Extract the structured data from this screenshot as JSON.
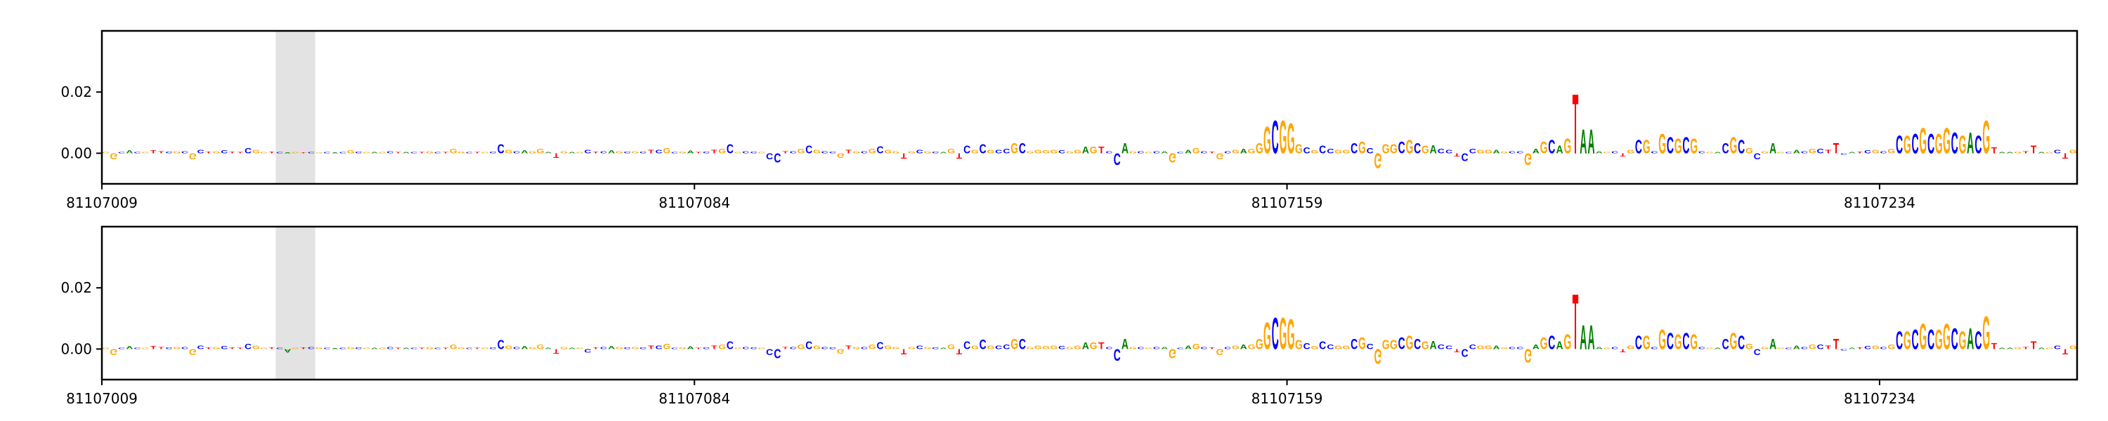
{
  "chart_data": [
    {
      "type": "logo",
      "xlim": [
        81107009,
        81107259
      ],
      "xticks": [
        81107009,
        81107084,
        81107159,
        81107234
      ],
      "ylim": [
        -0.01,
        0.04
      ],
      "yticks": [
        {
          "value": 0,
          "label": "0.00"
        },
        0.02
      ],
      "highlight": [
        81107031,
        81107036
      ],
      "highlight_color": "#e3e3e3",
      "colors": {
        "A": "#008000",
        "C": "#0000ff",
        "G": "#ffa500",
        "T": "#ff0000"
      },
      "bases": [
        "G",
        "G",
        "C",
        "A",
        "C",
        "G",
        "T",
        "T",
        "C",
        "G",
        "C",
        "G",
        "C",
        "T",
        "G",
        "C",
        "T",
        "T",
        "C",
        "G",
        "G",
        "T",
        "C",
        "A",
        "G",
        "T",
        "C",
        "G",
        "C",
        "A",
        "C",
        "G",
        "C",
        "G",
        "A",
        "G",
        "C",
        "T",
        "A",
        "C",
        "T",
        "G",
        "C",
        "T",
        "G",
        "G",
        "C",
        "T",
        "G",
        "C",
        "C",
        "G",
        "C",
        "A",
        "G",
        "G",
        "A",
        "T",
        "G",
        "A",
        "G",
        "C",
        "T",
        "C",
        "A",
        "G",
        "C",
        "G",
        "C",
        "T",
        "C",
        "G",
        "C",
        "G",
        "A",
        "T",
        "C",
        "T",
        "G",
        "C",
        "G",
        "C",
        "C",
        "G",
        "C",
        "C",
        "T",
        "C",
        "G",
        "C",
        "G",
        "C",
        "C",
        "G",
        "T",
        "G",
        "C",
        "G",
        "C",
        "G",
        "G",
        "T",
        "G",
        "C",
        "G",
        "C",
        "A",
        "G",
        "T",
        "C",
        "G",
        "C",
        "G",
        "C",
        "C",
        "G",
        "C",
        "G",
        "G",
        "G",
        "G",
        "C",
        "G",
        "G",
        "A",
        "G",
        "T",
        "C",
        "C",
        "A",
        "G",
        "C",
        "G",
        "C",
        "A",
        "G",
        "C",
        "A",
        "G",
        "C",
        "T",
        "G",
        "C",
        "G",
        "A",
        "G",
        "G",
        "G",
        "C",
        "G",
        "G",
        "G",
        "C",
        "G",
        "C",
        "C",
        "G",
        "G",
        "C",
        "G",
        "C",
        "G",
        "G",
        "G",
        "C",
        "G",
        "C",
        "G",
        "A",
        "C",
        "C",
        "T",
        "C",
        "C",
        "G",
        "G",
        "A",
        "G",
        "C",
        "C",
        "G",
        "A",
        "G",
        "C",
        "A",
        "G",
        "T",
        "A",
        "A",
        "A",
        "G",
        "C",
        "T",
        "G",
        "C",
        "G",
        "C",
        "G",
        "C",
        "G",
        "C",
        "G",
        "C",
        "G",
        "A",
        "C",
        "G",
        "C",
        "G",
        "C",
        "G",
        "A",
        "G",
        "C",
        "A",
        "C",
        "G",
        "C",
        "T",
        "T",
        "C",
        "A",
        "T",
        "C",
        "G",
        "C",
        "G",
        "C",
        "G",
        "C",
        "G",
        "C",
        "G",
        "G",
        "C",
        "G",
        "A",
        "C",
        "G",
        "T",
        "A",
        "A",
        "G",
        "T",
        "T",
        "A",
        "G",
        "C",
        "T",
        "G"
      ],
      "values": [
        0.0005,
        -0.002,
        0.0005,
        0.001,
        0.0005,
        0.0005,
        0.001,
        0.0008,
        0.0006,
        0.0008,
        0.0008,
        -0.002,
        0.0012,
        0.0006,
        0.0008,
        0.001,
        0.0006,
        0.0005,
        0.0018,
        0.0012,
        0.0005,
        0.0006,
        0.0005,
        0.0003,
        0.0004,
        0.0003,
        0.0004,
        0.0003,
        0.0004,
        0.0003,
        0.0004,
        0.001,
        0.0006,
        0.0005,
        0.0005,
        0.0004,
        0.0008,
        0.0004,
        0.0005,
        0.0004,
        0.0005,
        0.0007,
        0.0004,
        0.0005,
        0.0015,
        0.0006,
        0.0005,
        0.0005,
        0.0005,
        0.0006,
        0.003,
        0.0012,
        0.0008,
        0.001,
        0.0007,
        0.0015,
        0.0005,
        -0.0015,
        0.0008,
        0.0004,
        0.0004,
        0.0012,
        0.0006,
        0.0008,
        0.001,
        0.0007,
        0.0006,
        0.0008,
        0.0006,
        0.0012,
        0.0012,
        0.0018,
        0.0004,
        0.0006,
        0.0009,
        0.0005,
        0.0006,
        0.0012,
        0.0015,
        0.003,
        0.0005,
        0.0008,
        0.0006,
        0.0004,
        -0.002,
        -0.003,
        0.0008,
        0.0008,
        0.0015,
        0.0025,
        0.0012,
        0.0008,
        0.0006,
        -0.0015,
        0.0012,
        0.0008,
        0.0008,
        0.0015,
        0.0024,
        0.0012,
        0.0008,
        -0.0018,
        0.0008,
        0.0012,
        0.0008,
        0.0006,
        0.0004,
        0.0015,
        -0.0018,
        0.0025,
        0.0012,
        0.003,
        0.0012,
        0.0012,
        0.0015,
        0.0035,
        0.0035,
        0.0008,
        0.0012,
        0.001,
        0.0012,
        0.001,
        0.0008,
        0.0012,
        0.0022,
        0.0022,
        0.0022,
        0.0008,
        -0.004,
        0.0035,
        0.0008,
        0.0008,
        0.0004,
        0.0008,
        0.0008,
        -0.003,
        0.0004,
        0.0012,
        0.0018,
        0.0008,
        0.0006,
        -0.002,
        0.0008,
        0.0012,
        0.0015,
        0.0015,
        0.0035,
        0.009,
        0.011,
        0.011,
        0.01,
        0.003,
        0.002,
        0.001,
        0.0025,
        0.0015,
        0.0012,
        0.0012,
        0.0035,
        0.004,
        0.0018,
        -0.005,
        0.003,
        0.003,
        0.004,
        0.0045,
        0.0035,
        0.0025,
        0.0028,
        0.0015,
        0.0012,
        -0.001,
        -0.0025,
        0.0015,
        0.0012,
        0.0012,
        0.0012,
        0.0006,
        0.0008,
        0.0008,
        -0.004,
        0.0015,
        0.004,
        0.0045,
        0.0025,
        0.005,
        0.02,
        0.008,
        0.008,
        0.0008,
        0.0005,
        0.0008,
        -0.001,
        0.0012,
        0.0045,
        0.0045,
        0.0008,
        0.0065,
        0.0055,
        0.005,
        0.0055,
        0.005,
        0.0008,
        0.0004,
        0.0004,
        0.0035,
        0.0055,
        0.0045,
        0.0018,
        -0.002,
        0.0008,
        0.0035,
        0.0004,
        0.0005,
        0.0012,
        0.0008,
        0.0015,
        0.0015,
        0.0012,
        0.0035,
        -0.0005,
        0.0005,
        0.0006,
        0.001,
        0.0012,
        0.0008,
        0.0015,
        0.006,
        0.006,
        0.0065,
        0.0085,
        0.0065,
        0.0065,
        0.0085,
        0.007,
        0.006,
        0.007,
        0.006,
        0.011,
        0.002,
        0.0004,
        0.0004,
        0.0006,
        0.0008,
        0.0025,
        0.0004,
        0.0004,
        0.0012,
        -0.0018,
        0.0012
      ]
    },
    {
      "type": "logo",
      "xlim": [
        81107009,
        81107259
      ],
      "xticks": [
        81107009,
        81107084,
        81107159,
        81107234
      ],
      "ylim": [
        -0.01,
        0.04
      ],
      "yticks": [
        {
          "value": 0,
          "label": "0.00"
        },
        0.02
      ],
      "highlight": [
        81107031,
        81107036
      ],
      "highlight_color": "#e3e3e3",
      "colors": {
        "A": "#008000",
        "C": "#0000ff",
        "G": "#ffa500",
        "T": "#ff0000"
      },
      "bases": [
        "G",
        "G",
        "C",
        "A",
        "C",
        "G",
        "T",
        "T",
        "C",
        "G",
        "C",
        "G",
        "C",
        "T",
        "G",
        "C",
        "T",
        "T",
        "C",
        "G",
        "G",
        "T",
        "C",
        "A",
        "G",
        "T",
        "C",
        "G",
        "C",
        "A",
        "C",
        "G",
        "C",
        "G",
        "A",
        "G",
        "C",
        "T",
        "A",
        "C",
        "T",
        "G",
        "C",
        "T",
        "G",
        "G",
        "C",
        "T",
        "G",
        "C",
        "C",
        "G",
        "C",
        "A",
        "G",
        "G",
        "A",
        "T",
        "G",
        "A",
        "G",
        "C",
        "T",
        "C",
        "A",
        "G",
        "C",
        "G",
        "C",
        "T",
        "C",
        "G",
        "C",
        "G",
        "A",
        "T",
        "C",
        "T",
        "G",
        "C",
        "G",
        "C",
        "C",
        "G",
        "C",
        "C",
        "T",
        "C",
        "G",
        "C",
        "G",
        "C",
        "C",
        "G",
        "T",
        "G",
        "C",
        "G",
        "C",
        "G",
        "G",
        "T",
        "G",
        "C",
        "G",
        "C",
        "A",
        "G",
        "T",
        "C",
        "G",
        "C",
        "G",
        "C",
        "C",
        "G",
        "C",
        "G",
        "G",
        "G",
        "G",
        "C",
        "G",
        "G",
        "A",
        "G",
        "T",
        "C",
        "C",
        "A",
        "G",
        "C",
        "G",
        "C",
        "A",
        "G",
        "C",
        "A",
        "G",
        "C",
        "T",
        "G",
        "C",
        "G",
        "A",
        "G",
        "G",
        "G",
        "C",
        "G",
        "G",
        "G",
        "C",
        "G",
        "C",
        "C",
        "G",
        "G",
        "C",
        "G",
        "C",
        "G",
        "G",
        "G",
        "C",
        "G",
        "C",
        "G",
        "A",
        "C",
        "C",
        "T",
        "C",
        "C",
        "G",
        "G",
        "A",
        "G",
        "C",
        "C",
        "G",
        "A",
        "G",
        "C",
        "A",
        "G",
        "T",
        "A",
        "A",
        "A",
        "G",
        "C",
        "T",
        "G",
        "C",
        "G",
        "C",
        "G",
        "C",
        "G",
        "C",
        "G",
        "C",
        "G",
        "A",
        "C",
        "G",
        "C",
        "G",
        "C",
        "G",
        "A",
        "G",
        "C",
        "A",
        "C",
        "G",
        "C",
        "T",
        "T",
        "C",
        "A",
        "T",
        "C",
        "G",
        "C",
        "G",
        "C",
        "G",
        "C",
        "G",
        "C",
        "G",
        "G",
        "C",
        "G",
        "A",
        "C",
        "G",
        "T",
        "A",
        "A",
        "G",
        "T",
        "T",
        "A",
        "G",
        "C",
        "T",
        "G"
      ],
      "values": [
        0.0005,
        -0.002,
        0.0005,
        0.001,
        0.0005,
        0.0005,
        0.001,
        0.0008,
        0.0006,
        0.0008,
        0.0008,
        -0.002,
        0.0012,
        0.0006,
        0.0008,
        0.001,
        0.0006,
        0.0005,
        0.0018,
        0.0012,
        0.0005,
        0.0006,
        0.0005,
        -0.0012,
        0.0004,
        0.0006,
        0.0008,
        0.0006,
        0.0004,
        0.0003,
        0.0004,
        0.0008,
        0.0006,
        0.0005,
        0.0005,
        0.0004,
        0.0008,
        0.0004,
        0.0005,
        0.0004,
        0.0005,
        0.0007,
        0.0004,
        0.0005,
        0.0015,
        0.0006,
        0.0005,
        0.0005,
        0.0005,
        0.0006,
        0.003,
        0.0012,
        0.0008,
        0.001,
        0.0007,
        0.0015,
        0.0005,
        -0.0015,
        0.0008,
        0.0004,
        0.0004,
        -0.0012,
        0.0006,
        0.0008,
        0.001,
        0.0007,
        0.0006,
        0.0008,
        0.0006,
        0.0012,
        0.0012,
        0.0018,
        0.0004,
        0.0006,
        0.0009,
        0.0005,
        0.0006,
        0.0012,
        0.0015,
        0.0025,
        0.0005,
        0.0008,
        0.0006,
        0.0004,
        -0.002,
        -0.003,
        0.0008,
        0.0008,
        0.0015,
        0.0025,
        0.0012,
        0.0008,
        0.0006,
        -0.0015,
        0.0012,
        0.0008,
        0.0008,
        0.0015,
        0.0024,
        0.0012,
        0.0008,
        -0.0018,
        0.0008,
        0.0012,
        0.0008,
        0.0006,
        0.0004,
        0.0015,
        -0.0018,
        0.0025,
        0.0012,
        0.0032,
        0.0012,
        0.0012,
        0.0015,
        0.0035,
        0.0035,
        0.0008,
        0.0012,
        0.001,
        0.0012,
        0.001,
        0.0008,
        0.0012,
        0.0022,
        0.0022,
        0.0022,
        0.0008,
        -0.004,
        0.0035,
        0.0008,
        0.0008,
        0.0004,
        0.0008,
        0.0008,
        -0.003,
        0.0004,
        0.0012,
        0.0018,
        0.0008,
        0.0006,
        -0.002,
        0.0008,
        0.0012,
        0.0015,
        0.0015,
        0.0035,
        0.009,
        0.0105,
        0.0105,
        0.01,
        0.003,
        0.002,
        0.001,
        0.0025,
        0.0015,
        0.0012,
        0.0012,
        0.0035,
        0.004,
        0.0018,
        -0.005,
        0.003,
        0.003,
        0.004,
        0.0045,
        0.0035,
        0.0025,
        0.0028,
        0.0015,
        0.0012,
        -0.001,
        -0.0025,
        0.0015,
        0.0012,
        0.0012,
        0.0012,
        0.0006,
        0.0008,
        0.0008,
        -0.0045,
        0.0015,
        0.004,
        0.0045,
        0.0025,
        0.005,
        0.0185,
        0.008,
        0.008,
        0.0008,
        0.0005,
        0.0008,
        -0.001,
        0.0012,
        0.0045,
        0.0045,
        0.0008,
        0.0065,
        0.0055,
        0.005,
        0.0055,
        0.005,
        0.0008,
        0.0004,
        0.0004,
        0.0035,
        0.0055,
        0.0045,
        0.0018,
        -0.002,
        0.0008,
        0.0035,
        0.0004,
        0.0005,
        0.0012,
        0.0008,
        0.0015,
        0.0015,
        0.0012,
        0.0035,
        -0.0005,
        0.0005,
        0.0006,
        0.001,
        0.0012,
        0.0008,
        0.0015,
        0.006,
        0.006,
        0.0065,
        0.0085,
        0.0065,
        0.0065,
        0.0085,
        0.007,
        0.006,
        0.007,
        0.006,
        0.011,
        0.002,
        0.0004,
        0.0004,
        0.0006,
        0.0008,
        0.0025,
        0.0004,
        0.0004,
        0.0012,
        -0.0018,
        0.0012
      ]
    }
  ]
}
